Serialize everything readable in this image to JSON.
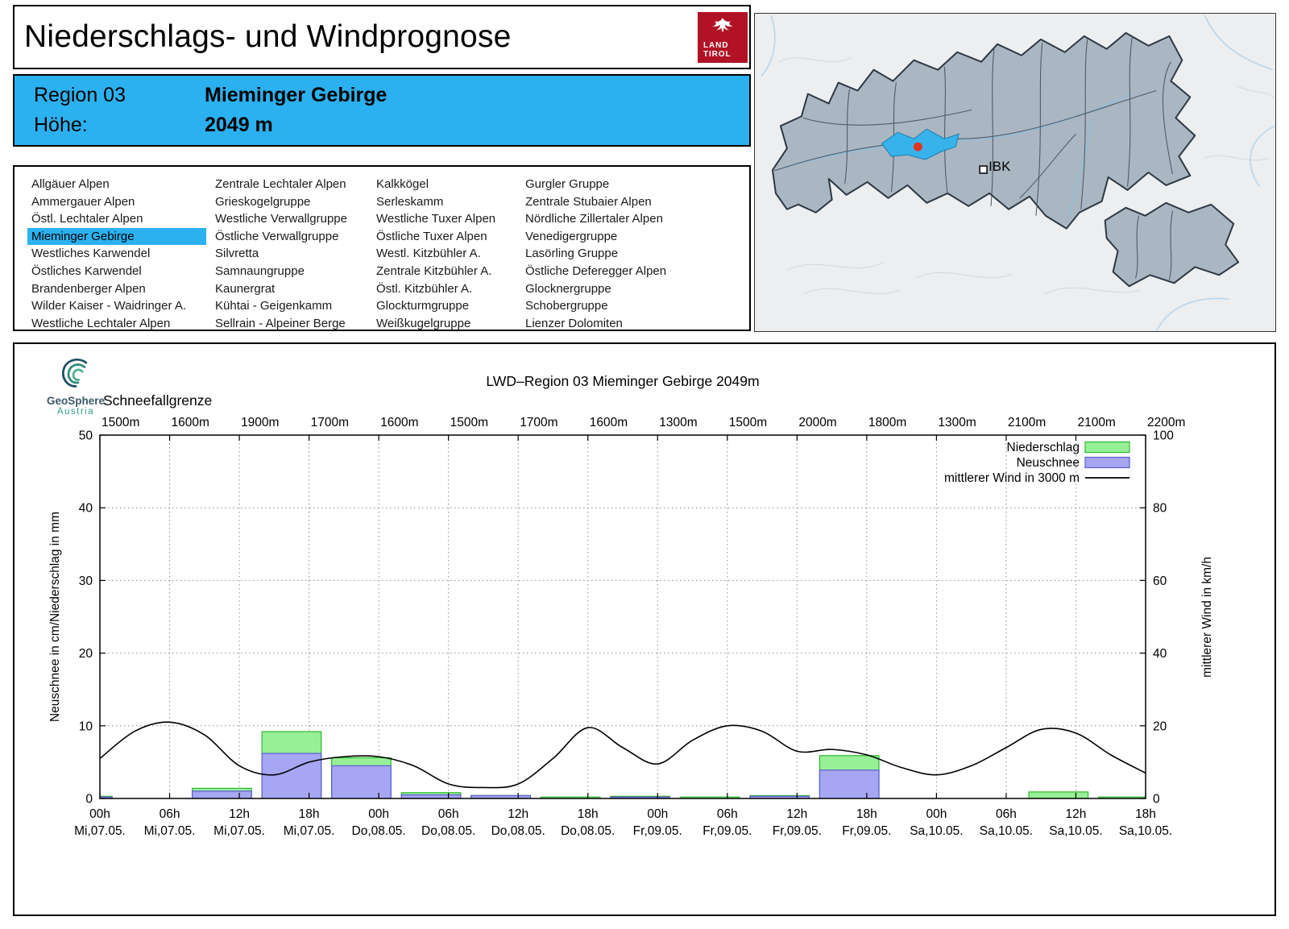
{
  "colors": {
    "accent": "#2cb1f0",
    "logo_red": "#b11226",
    "map_highlight": "#38b2ea",
    "marker_red": "#e03322"
  },
  "header": {
    "title": "Niederschlags- und Windprognose",
    "logo_line1": "LAND",
    "logo_line2": "TIROL"
  },
  "region_box": {
    "region_label": "Region 03",
    "region_name": "Mieminger Gebirge",
    "altitude_label": "Höhe:",
    "altitude_value": "2049 m"
  },
  "region_list": {
    "selected": "Mieminger Gebirge",
    "columns": [
      [
        "Allgäuer Alpen",
        "Ammergauer Alpen",
        "Östl. Lechtaler Alpen",
        "Mieminger Gebirge",
        "Westliches Karwendel",
        "Östliches Karwendel",
        "Brandenberger Alpen",
        "Wilder Kaiser - Waidringer A.",
        "Westliche Lechtaler Alpen"
      ],
      [
        "Zentrale Lechtaler Alpen",
        "Grieskogelgruppe",
        "Westliche Verwallgruppe",
        "Östliche Verwallgruppe",
        "Silvretta",
        "Samnaungruppe",
        "Kaunergrat",
        "Kühtai - Geigenkamm",
        "Sellrain - Alpeiner Berge"
      ],
      [
        "Kalkkögel",
        "Serleskamm",
        "Westliche Tuxer Alpen",
        "Östliche Tuxer Alpen",
        "Westl. Kitzbühler A.",
        "Zentrale Kitzbühler A.",
        "Östl. Kitzbühler A.",
        "Glockturmgruppe",
        "Weißkugelgruppe"
      ],
      [
        "Gurgler Gruppe",
        "Zentrale Stubaier Alpen",
        "Nördliche Zillertaler Alpen",
        "Venedigergruppe",
        "Lasörling Gruppe",
        "Östliche Deferegger Alpen",
        "Glocknergruppe",
        "Schobergruppe",
        "Lienzer Dolomiten"
      ]
    ]
  },
  "map": {
    "city_label": "IBK"
  },
  "provider": {
    "name": "GeoSphere",
    "country": "Austria"
  },
  "chart_data": {
    "type": "bar",
    "title": "LWD–Region 03 Mieminger Gebirge 2049m",
    "snowline_label": "Schneefallgrenze",
    "snowline_values": [
      "1500m",
      "1600m",
      "1900m",
      "1700m",
      "1600m",
      "1500m",
      "1700m",
      "1600m",
      "1300m",
      "1500m",
      "2000m",
      "1800m",
      "1300m",
      "2100m",
      "2100m",
      "2200m"
    ],
    "ylabel_left": "Neuschnee in cm/Niederschlag in mm",
    "ylabel_right": "mittlerer Wind in km/h",
    "ylim_left": [
      0,
      50
    ],
    "ylim_right": [
      0,
      100
    ],
    "grid": true,
    "legend_position": "top-right",
    "x_hours": [
      0,
      6,
      12,
      18,
      24,
      30,
      36,
      42,
      48,
      54,
      60,
      66,
      72,
      78,
      84,
      90
    ],
    "x_tick_hour_labels": [
      "00h",
      "06h",
      "12h",
      "18h",
      "00h",
      "06h",
      "12h",
      "18h",
      "00h",
      "06h",
      "12h",
      "18h",
      "00h",
      "06h",
      "12h",
      "18h"
    ],
    "x_tick_day_labels": [
      "Mi,07.05.",
      "Mi,07.05.",
      "Mi,07.05.",
      "Mi,07.05.",
      "Do,08.05.",
      "Do,08.05.",
      "Do,08.05.",
      "Do,08.05.",
      "Fr,09.05.",
      "Fr,09.05.",
      "Fr,09.05.",
      "Fr,09.05.",
      "Sa,10.05.",
      "Sa,10.05.",
      "Sa,10.05.",
      "Sa,10.05."
    ],
    "legend": [
      {
        "label": "Niederschlag",
        "kind": "box",
        "fill": "#97f097",
        "stroke": "#2eb82e"
      },
      {
        "label": "Neuschnee",
        "kind": "box",
        "fill": "#a6a6f2",
        "stroke": "#5c5cd6"
      },
      {
        "label": "mittlerer Wind in 3000 m",
        "kind": "line",
        "stroke": "#000000"
      }
    ],
    "series": {
      "niederschlag_mm": [
        0.3,
        0,
        1.4,
        9.2,
        5.6,
        0.8,
        0.4,
        0.2,
        0.3,
        0.2,
        0.4,
        5.9,
        0,
        0,
        0.9,
        0.2
      ],
      "neuschnee_cm": [
        0.2,
        0,
        1.0,
        6.2,
        4.5,
        0.5,
        0.4,
        0,
        0.2,
        0,
        0.3,
        3.9,
        0,
        0,
        0,
        0
      ],
      "wind_kmh": {
        "hours": [
          0,
          3,
          6,
          9,
          12,
          15,
          18,
          21,
          24,
          27,
          30,
          33,
          36,
          39,
          42,
          45,
          48,
          51,
          54,
          57,
          60,
          63,
          66,
          69,
          72,
          75,
          78,
          81,
          84,
          87,
          90
        ],
        "values": [
          11,
          18.5,
          21,
          17.5,
          9,
          6.5,
          10,
          11.5,
          11.5,
          9,
          4,
          3,
          4,
          11,
          19.5,
          14,
          9.5,
          16,
          20,
          18.5,
          13,
          13.5,
          12,
          8.5,
          6.5,
          9,
          14,
          19,
          18,
          12,
          7
        ]
      }
    }
  }
}
